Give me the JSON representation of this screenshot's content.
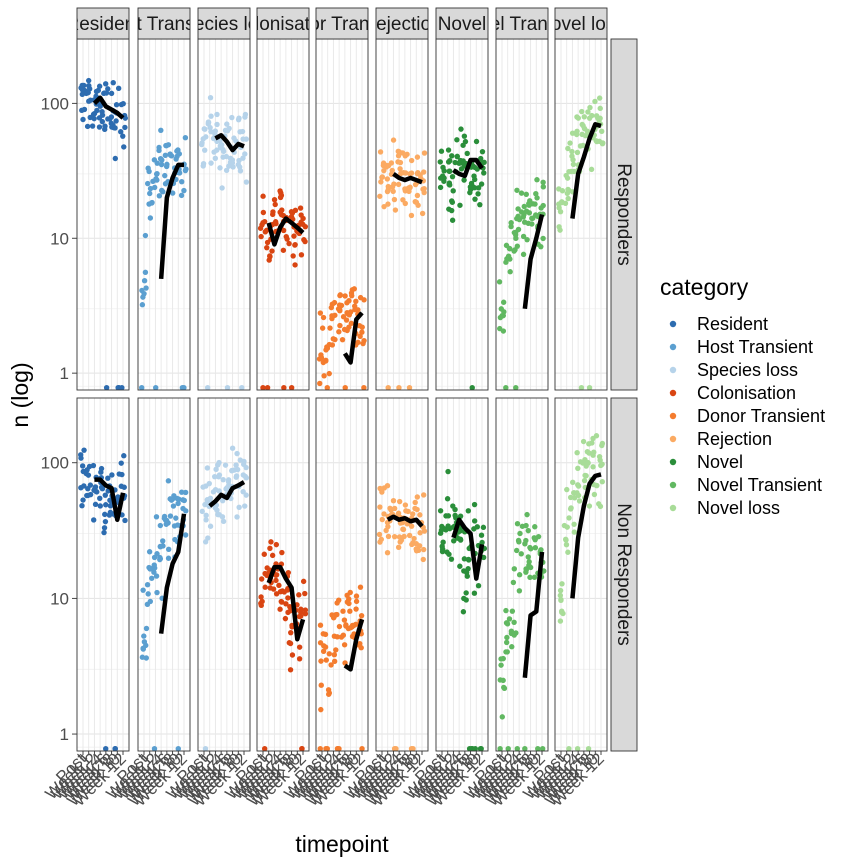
{
  "chart_data": {
    "type": "scatter",
    "xlabel": "timepoint",
    "ylabel": "n (log)",
    "y_scale": "log10",
    "ylim": [
      0.75,
      300
    ],
    "y_ticks": [
      1,
      10,
      100
    ],
    "y_tick_labels": [
      "1",
      "10",
      "100"
    ],
    "grid": true,
    "legend_position": "right",
    "legend_title": "category",
    "column_strips": [
      "Resident",
      "Host Transient",
      "Species loss",
      "Colonisation",
      "Donor Transient",
      "Rejection",
      "Novel",
      "Novel Transient",
      "Novel loss"
    ],
    "row_strips": [
      "Responders",
      "Non Responders"
    ],
    "x_tick_labels": [
      "Post",
      "Week 1",
      "Week 2",
      "Week 4",
      "Week 6",
      "Week 8",
      "Week 10",
      "Week 12"
    ],
    "series": [
      {
        "name": "Resident",
        "color": "#2d6cb0",
        "responders_median": [
          100,
          110,
          95,
          90,
          85,
          78
        ],
        "non_responders_median": [
          75,
          75,
          68,
          65,
          38,
          60
        ]
      },
      {
        "name": "Host Transient",
        "color": "#5b9fd0",
        "responders_median": [
          5,
          20,
          28,
          35,
          35
        ],
        "non_responders_median": [
          5.5,
          12,
          18,
          22,
          42
        ]
      },
      {
        "name": "Species loss",
        "color": "#b6d3ea",
        "responders_median": [
          55,
          58,
          52,
          45,
          50,
          48
        ],
        "non_responders_median": [
          48,
          52,
          58,
          55,
          65,
          68,
          72
        ]
      },
      {
        "name": "Colonisation",
        "color": "#d94512",
        "responders_median": [
          13,
          9,
          12,
          14,
          13,
          12,
          11
        ],
        "non_responders_median": [
          13,
          17,
          17,
          14,
          12,
          5,
          7
        ]
      },
      {
        "name": "Donor Transient",
        "color": "#f47c2e",
        "responders_median": [
          1.4,
          1.2,
          2.5,
          2.8
        ],
        "non_responders_median": [
          3.2,
          3.0,
          5,
          7
        ]
      },
      {
        "name": "Rejection",
        "color": "#fbaa62",
        "responders_median": [
          30,
          28,
          27,
          28,
          27,
          26
        ],
        "non_responders_median": [
          38,
          40,
          38,
          39,
          37,
          38,
          34
        ]
      },
      {
        "name": "Novel",
        "color": "#2a8e3a",
        "responders_median": [
          32,
          30,
          29,
          38,
          38,
          33
        ],
        "non_responders_median": [
          28,
          38,
          33,
          30,
          14,
          25
        ]
      },
      {
        "name": "Novel Transient",
        "color": "#61b861",
        "responders_median": [
          3,
          7,
          10,
          15
        ],
        "non_responders_median": [
          2.6,
          7.5,
          8,
          22
        ]
      },
      {
        "name": "Novel loss",
        "color": "#a8dc98",
        "responders_median": [
          14,
          30,
          40,
          55,
          70,
          68
        ],
        "non_responders_median": [
          10,
          28,
          48,
          70,
          80,
          82
        ]
      }
    ]
  }
}
